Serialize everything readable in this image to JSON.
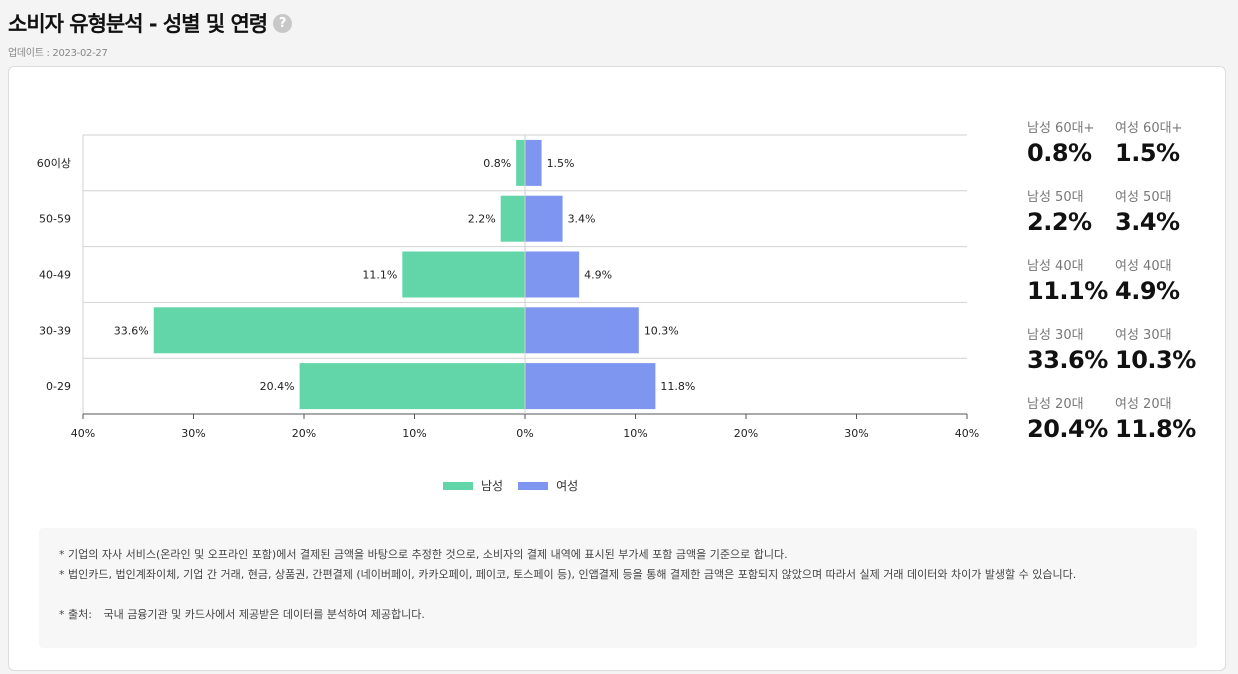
{
  "header": {
    "title": "소비자 유형분석 - 성별 및 연령",
    "help_icon": "?",
    "updated": "업데이트 : 2023-02-27"
  },
  "colors": {
    "male": "#62d6a8",
    "female": "#7f96f0"
  },
  "chart_data": {
    "type": "bar",
    "orientation": "horizontal-diverging",
    "categories": [
      "60이상",
      "50-59",
      "40-49",
      "30-39",
      "0-29"
    ],
    "series": [
      {
        "name": "남성",
        "values": [
          0.8,
          2.2,
          11.1,
          33.6,
          20.4
        ],
        "labels": [
          "0.8%",
          "2.2%",
          "11.1%",
          "33.6%",
          "20.4%"
        ]
      },
      {
        "name": "여성",
        "values": [
          1.5,
          3.4,
          4.9,
          10.3,
          11.8
        ],
        "labels": [
          "1.5%",
          "3.4%",
          "4.9%",
          "10.3%",
          "11.8%"
        ]
      }
    ],
    "x_ticks": [
      "40%",
      "30%",
      "20%",
      "10%",
      "0%",
      "10%",
      "20%",
      "30%",
      "40%"
    ],
    "xlim": [
      -40,
      40
    ],
    "legend_position": "bottom-center"
  },
  "stats": [
    [
      {
        "label": "남성 60대+",
        "value": "0.8%"
      },
      {
        "label": "여성 60대+",
        "value": "1.5%"
      }
    ],
    [
      {
        "label": "남성 50대",
        "value": "2.2%"
      },
      {
        "label": "여성 50대",
        "value": "3.4%"
      }
    ],
    [
      {
        "label": "남성 40대",
        "value": "11.1%"
      },
      {
        "label": "여성 40대",
        "value": "4.9%"
      }
    ],
    [
      {
        "label": "남성 30대",
        "value": "33.6%"
      },
      {
        "label": "여성 30대",
        "value": "10.3%"
      }
    ],
    [
      {
        "label": "남성 20대",
        "value": "20.4%"
      },
      {
        "label": "여성 20대",
        "value": "11.8%"
      }
    ]
  ],
  "notes": {
    "line1": "* 기업의 자사 서비스(온라인 및 오프라인 포함)에서 결제된 금액을 바탕으로 추정한 것으로, 소비자의 결제 내역에 표시된 부가세 포함 금액을 기준으로 합니다.",
    "line2": "* 법인카드, 법인계좌이체, 기업 간 거래, 현금, 상품권, 간편결제 (네이버페이, 카카오페이, 페이코, 토스페이 등), 인앱결제 등을 통해 결제한 금액은 포함되지 않았으며 따라서 실제 거래 데이터와 차이가 발생할 수 있습니다.",
    "source_label": "* 출처:",
    "source_text": "국내 금융기관 및 카드사에서 제공받은 데이터를 분석하여 제공합니다."
  }
}
